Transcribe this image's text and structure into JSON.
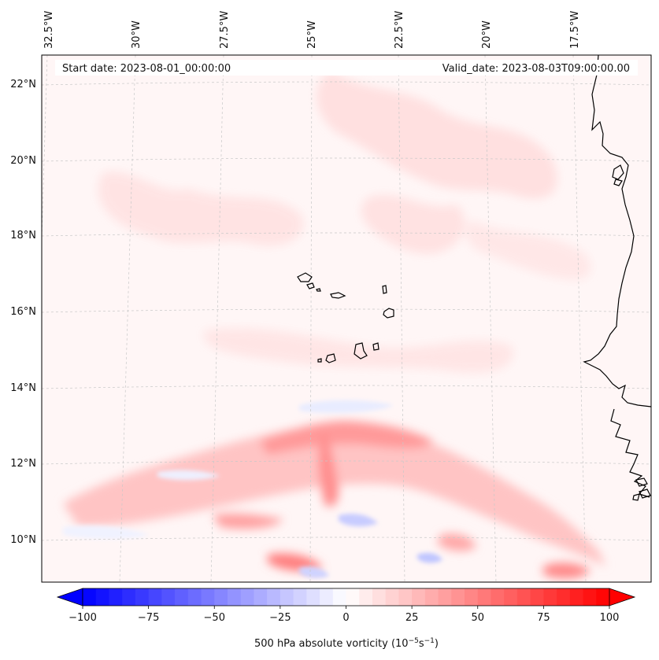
{
  "header": {
    "start_date": "Start date: 2023-08-01_00:00:00",
    "valid_date": "Valid_date: 2023-08-03T09:00:00.00"
  },
  "axes": {
    "lon_labels": [
      "32.5°W",
      "30°W",
      "27.5°W",
      "25°W",
      "22.5°W",
      "20°W",
      "17.5°W"
    ],
    "lat_labels": [
      "22°N",
      "20°N",
      "18°N",
      "16°N",
      "14°N",
      "12°N",
      "10°N"
    ]
  },
  "colorbar": {
    "ticks": [
      "−100",
      "−75",
      "−50",
      "−25",
      "0",
      "25",
      "50",
      "75",
      "100"
    ],
    "tick_values": [
      -100,
      -75,
      -50,
      -25,
      0,
      25,
      50,
      75,
      100
    ],
    "min": -100,
    "max": 100,
    "label_prefix": "500 hPa absolute vorticity (10",
    "label_exp1": "−5",
    "label_mid": "s",
    "label_exp2": "−1",
    "label_suffix": ")"
  },
  "colors": {
    "negative": "#0000ff",
    "neutral": "#ffffff",
    "positive": "#ff0000"
  }
}
